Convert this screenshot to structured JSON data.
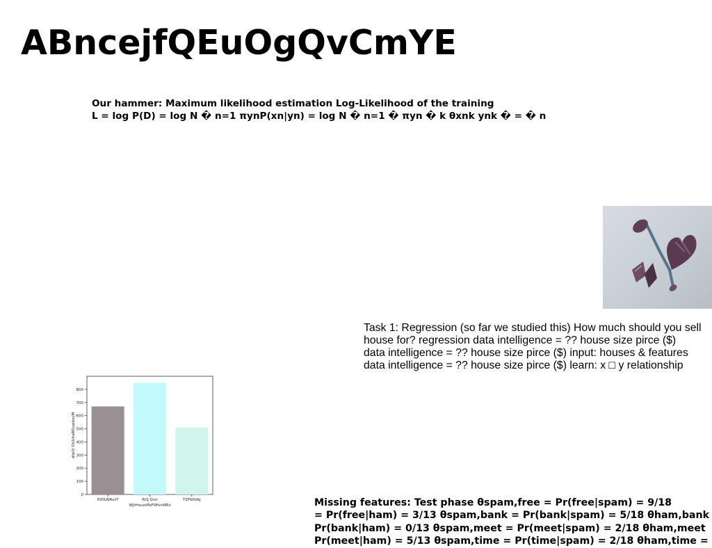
{
  "page": {
    "title": "ABncejfQEuOgQvCmYE"
  },
  "hammer_block": {
    "lines": [
      "Our hammer: Maximum likelihood estimation Log-Likelihood of the training",
      "L = log P(D) = log N � n=1 πynP(xn|yn) = log N � n=1 � πyn � k θxnk ynk � = � n"
    ]
  },
  "task_block": {
    "lines": [
      "Task 1: Regression (so far we studied this) How much should you sell",
      "house for? regression data intelligence = ?? house size pirce ($)",
      "data intelligence = ?? house size pirce ($) input: houses & features",
      "data intelligence = ?? house size pirce ($) learn: x □ y relationship"
    ]
  },
  "missing_block": {
    "lines": [
      "Missing features: Test phase θspam,free = Pr(free|spam) = 9/18",
      "= Pr(free|ham) = 3/13 θspam,bank = Pr(bank|spam) = 5/18 θham,bank",
      "Pr(bank|ham) = 0/13 θspam,meet = Pr(meet|spam) = 2/18 θham,meet",
      "Pr(meet|ham) = 5/13 θspam,time = Pr(time|spam) = 2/18 θham,time ="
    ]
  },
  "photo": {
    "icon": "crystal-facial-roller-photo",
    "background_color": "#cfd6dc",
    "stone_color": "#5e3f55"
  },
  "chart_data": {
    "type": "bar",
    "categories": [
      "KtDLWAvsT",
      "RUj Qun",
      "TZPbSVej"
    ],
    "values": [
      670,
      850,
      510
    ],
    "colors": [
      "#9a8f93",
      "#c2f9fb",
      "#d1f5ed"
    ],
    "xlabel": "WJrHxczsPbFWfvrWEz",
    "ylabel": "dIwVi OUUhaRDuwbzuM",
    "yticks": [
      0,
      100,
      200,
      300,
      400,
      500,
      600,
      700,
      800
    ],
    "ylim": [
      0,
      900
    ],
    "grid": false
  }
}
